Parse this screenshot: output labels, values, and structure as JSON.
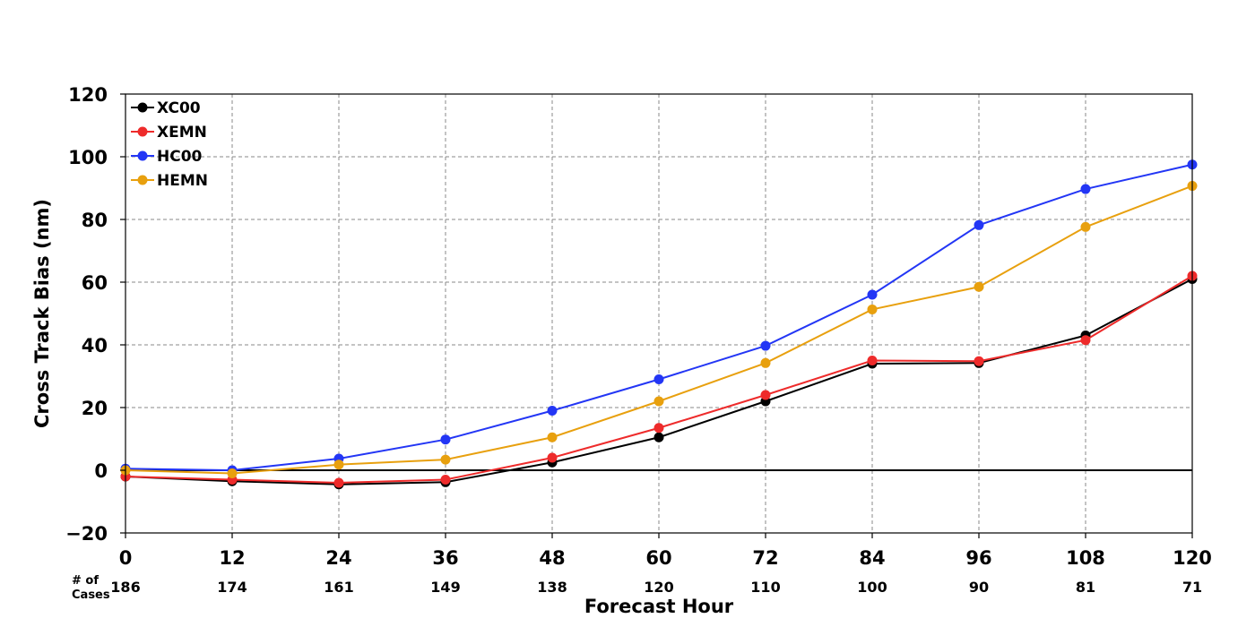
{
  "chart_data": {
    "type": "line",
    "title": "",
    "xlabel": "Forecast Hour",
    "ylabel": "Cross Track Bias (nm)",
    "xlim": [
      0,
      120
    ],
    "ylim": [
      -20,
      120
    ],
    "x": [
      0,
      12,
      24,
      36,
      48,
      60,
      72,
      84,
      96,
      108,
      120
    ],
    "x_tick_labels": [
      "0",
      "12",
      "24",
      "36",
      "48",
      "60",
      "72",
      "84",
      "96",
      "108",
      "120"
    ],
    "y_ticks": [
      -20,
      0,
      20,
      40,
      60,
      80,
      100,
      120
    ],
    "y_tick_labels": [
      "−20",
      "0",
      "20",
      "40",
      "60",
      "80",
      "100",
      "120"
    ],
    "grid": true,
    "legend_position": "top-left",
    "cases_header_line1": "# of",
    "cases_header_line2": "Cases",
    "cases": [
      "186",
      "174",
      "161",
      "149",
      "138",
      "120",
      "110",
      "100",
      "90",
      "81",
      "71"
    ],
    "series": [
      {
        "name": "XC00",
        "color": "#000000",
        "values": [
          -2,
          -3.5,
          -4.5,
          -3.8,
          2.5,
          10.5,
          22,
          34,
          34.2,
          43,
          61
        ]
      },
      {
        "name": "XEMN",
        "color": "#ee2b2b",
        "values": [
          -2,
          -3,
          -4,
          -3,
          4,
          13.5,
          24,
          35,
          34.8,
          41.5,
          62
        ]
      },
      {
        "name": "HC00",
        "color": "#2336f5",
        "values": [
          0.5,
          0,
          3.7,
          9.8,
          19,
          29,
          39.7,
          56,
          78.2,
          89.7,
          97.5
        ]
      },
      {
        "name": "HEMN",
        "color": "#e8a00e",
        "values": [
          0,
          -1,
          1.8,
          3.4,
          10.5,
          22,
          34.2,
          51.3,
          58.5,
          77.6,
          90.7
        ]
      }
    ]
  }
}
